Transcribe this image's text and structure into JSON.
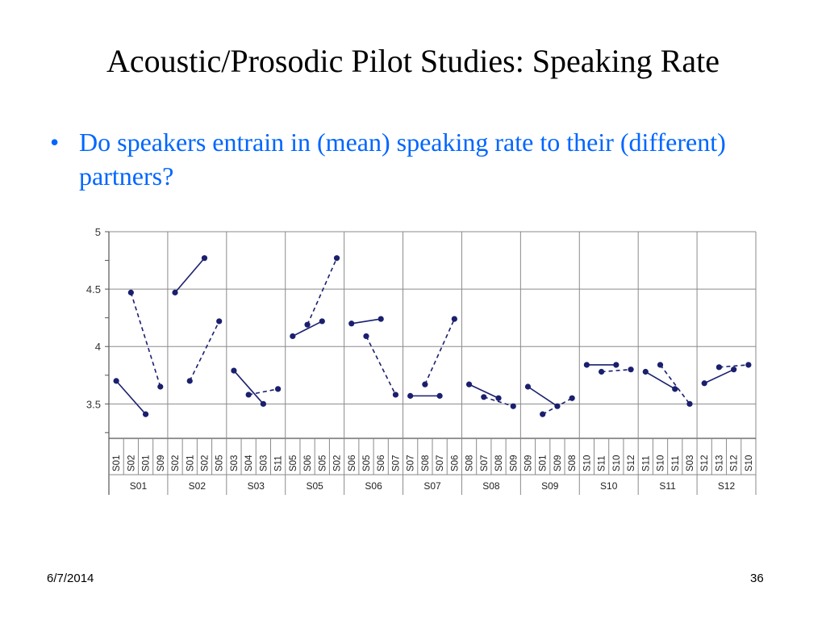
{
  "slide": {
    "title": "Acoustic/Prosodic Pilot Studies: Speaking Rate",
    "bullet": "Do speakers entrain in (mean) speaking rate to their (different) partners?",
    "date": "6/7/2014",
    "page_number": "36"
  },
  "colors": {
    "title": "#000000",
    "bullet": "#0066ff",
    "series": "#1a1f6e",
    "grid": "#8a8a8a",
    "axis": "#555555"
  },
  "chart_data": {
    "type": "line",
    "title": "",
    "xlabel": "",
    "ylabel": "",
    "ylim": [
      3.2,
      5
    ],
    "yticks": [
      3.5,
      4,
      4.5,
      5
    ],
    "grid": true,
    "groups": [
      {
        "label": "S01",
        "cols": [
          "S01",
          "S02",
          "S01",
          "S09"
        ],
        "solid": [
          [
            0,
            3.7
          ],
          [
            2,
            3.41
          ]
        ],
        "dashed": [
          [
            1,
            4.47
          ],
          [
            3,
            3.65
          ]
        ]
      },
      {
        "label": "S02",
        "cols": [
          "S02",
          "S01",
          "S02",
          "S05"
        ],
        "solid": [
          [
            0,
            4.47
          ],
          [
            2,
            4.77
          ]
        ],
        "dashed": [
          [
            1,
            3.7
          ],
          [
            3,
            4.22
          ]
        ]
      },
      {
        "label": "S03",
        "cols": [
          "S03",
          "S04",
          "S03",
          "S11"
        ],
        "solid": [
          [
            0,
            3.79
          ],
          [
            2,
            3.5
          ]
        ],
        "dashed": [
          [
            1,
            3.58
          ],
          [
            3,
            3.63
          ]
        ]
      },
      {
        "label": "S05",
        "cols": [
          "S05",
          "S06",
          "S05",
          "S02"
        ],
        "solid": [
          [
            0,
            4.09
          ],
          [
            2,
            4.22
          ]
        ],
        "dashed": [
          [
            1,
            4.19
          ],
          [
            3,
            4.77
          ]
        ]
      },
      {
        "label": "S06",
        "cols": [
          "S06",
          "S05",
          "S06",
          "S07"
        ],
        "solid": [
          [
            0,
            4.2
          ],
          [
            2,
            4.24
          ]
        ],
        "dashed": [
          [
            1,
            4.09
          ],
          [
            3,
            3.58
          ]
        ]
      },
      {
        "label": "S07",
        "cols": [
          "S07",
          "S08",
          "S07",
          "S06"
        ],
        "solid": [
          [
            0,
            3.57
          ],
          [
            2,
            3.57
          ]
        ],
        "dashed": [
          [
            1,
            3.67
          ],
          [
            3,
            4.24
          ]
        ]
      },
      {
        "label": "S08",
        "cols": [
          "S08",
          "S07",
          "S08",
          "S09"
        ],
        "solid": [
          [
            0,
            3.67
          ],
          [
            2,
            3.55
          ]
        ],
        "dashed": [
          [
            1,
            3.56
          ],
          [
            3,
            3.48
          ]
        ]
      },
      {
        "label": "S09",
        "cols": [
          "S09",
          "S01",
          "S09",
          "S08"
        ],
        "solid": [
          [
            0,
            3.65
          ],
          [
            2,
            3.48
          ]
        ],
        "dashed": [
          [
            1,
            3.41
          ],
          [
            3,
            3.55
          ]
        ]
      },
      {
        "label": "S10",
        "cols": [
          "S10",
          "S11",
          "S10",
          "S12"
        ],
        "solid": [
          [
            0,
            3.84
          ],
          [
            2,
            3.84
          ]
        ],
        "dashed": [
          [
            1,
            3.78
          ],
          [
            3,
            3.8
          ]
        ]
      },
      {
        "label": "S11",
        "cols": [
          "S11",
          "S10",
          "S11",
          "S03"
        ],
        "solid": [
          [
            0,
            3.78
          ],
          [
            2,
            3.63
          ]
        ],
        "dashed": [
          [
            1,
            3.84
          ],
          [
            3,
            3.5
          ]
        ]
      },
      {
        "label": "S12",
        "cols": [
          "S12",
          "S13",
          "S12",
          "S10"
        ],
        "solid": [
          [
            0,
            3.68
          ],
          [
            2,
            3.8
          ]
        ],
        "dashed": [
          [
            1,
            3.82
          ],
          [
            3,
            3.84
          ]
        ]
      }
    ]
  }
}
